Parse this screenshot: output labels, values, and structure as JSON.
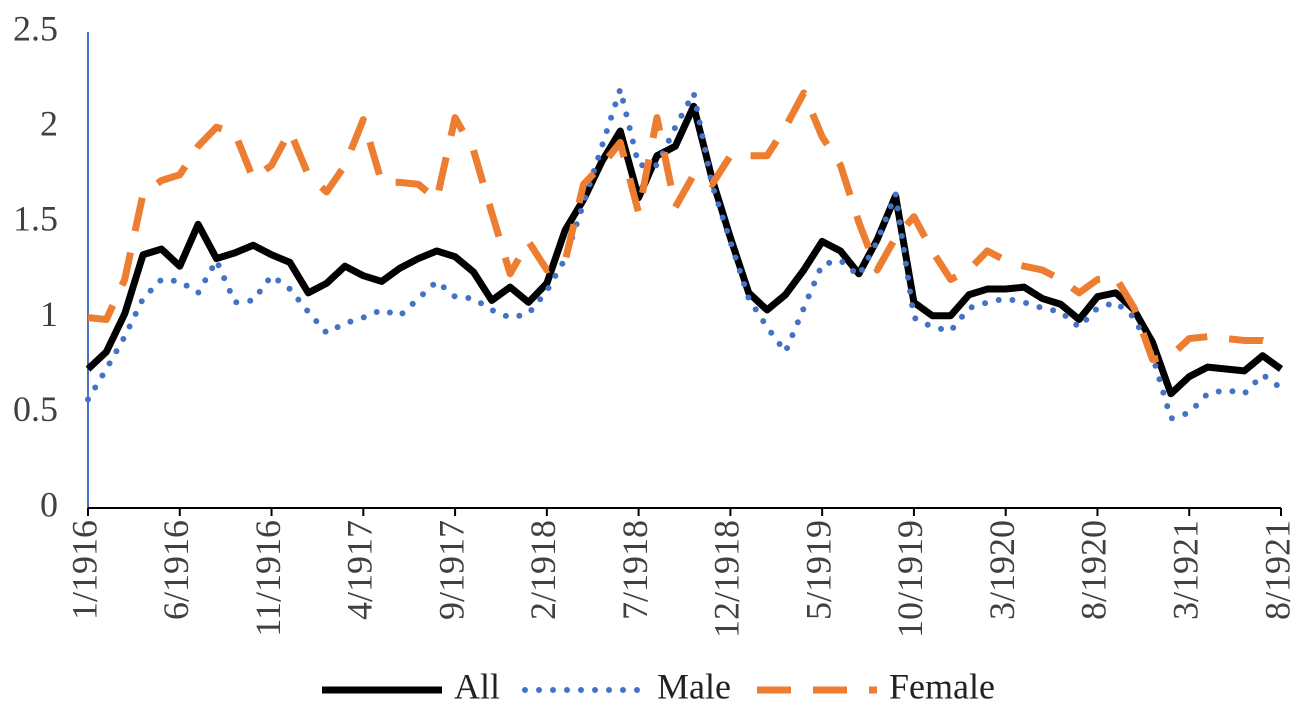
{
  "chart_data": {
    "type": "line",
    "categories": [
      "1/1916",
      null,
      null,
      null,
      null,
      "6/1916",
      null,
      null,
      null,
      null,
      "11/1916",
      null,
      null,
      null,
      null,
      "4/1917",
      null,
      null,
      null,
      null,
      "9/1917",
      null,
      null,
      null,
      null,
      "2/1918",
      null,
      null,
      null,
      null,
      "7/1918",
      null,
      null,
      null,
      null,
      "12/1918",
      null,
      null,
      null,
      null,
      "5/1919",
      null,
      null,
      null,
      null,
      "10/1919",
      null,
      null,
      null,
      null,
      "3/1920",
      null,
      null,
      null,
      null,
      "8/1920",
      null,
      null,
      null,
      null,
      "3/1921",
      null,
      null,
      null,
      null,
      "8/1921"
    ],
    "series": [
      {
        "name": "All",
        "color": "#000000",
        "values": [
          0.73,
          0.82,
          1.02,
          1.33,
          1.36,
          1.27,
          1.49,
          1.31,
          1.34,
          1.38,
          1.33,
          1.29,
          1.13,
          1.18,
          1.27,
          1.22,
          1.19,
          1.26,
          1.31,
          1.35,
          1.32,
          1.24,
          1.09,
          1.16,
          1.08,
          1.18,
          1.46,
          1.62,
          1.82,
          1.98,
          1.63,
          1.85,
          1.9,
          2.11,
          1.73,
          1.42,
          1.13,
          1.04,
          1.12,
          1.25,
          1.4,
          1.35,
          1.23,
          1.41,
          1.64,
          1.08,
          1.01,
          1.01,
          1.12,
          1.15,
          1.15,
          1.16,
          1.1,
          1.07,
          0.99,
          1.11,
          1.13,
          1.04,
          0.87,
          0.6,
          0.69,
          0.74,
          0.73,
          0.72,
          0.8,
          0.73
        ]
      },
      {
        "name": "Male",
        "color": "#4472c4",
        "values": [
          0.57,
          0.73,
          0.9,
          1.1,
          1.2,
          1.19,
          1.13,
          1.3,
          1.08,
          1.09,
          1.22,
          1.15,
          1.03,
          0.92,
          0.97,
          1.0,
          1.04,
          1.01,
          1.1,
          1.19,
          1.11,
          1.1,
          1.04,
          1.0,
          1.02,
          1.14,
          1.31,
          1.6,
          1.9,
          2.2,
          1.8,
          1.8,
          2.0,
          2.18,
          1.7,
          1.4,
          1.1,
          0.95,
          0.82,
          1.05,
          1.28,
          1.3,
          1.22,
          1.4,
          1.65,
          1.0,
          0.95,
          0.93,
          1.05,
          1.08,
          1.1,
          1.08,
          1.05,
          1.03,
          0.95,
          1.05,
          1.08,
          1.0,
          0.8,
          0.47,
          0.5,
          0.6,
          0.62,
          0.6,
          0.7,
          0.63
        ]
      },
      {
        "name": "Female",
        "color": "#ed7d31",
        "values": [
          1.0,
          0.99,
          1.2,
          1.65,
          1.72,
          1.75,
          1.9,
          2.0,
          1.97,
          1.73,
          1.8,
          1.98,
          1.75,
          1.66,
          1.8,
          2.04,
          1.71,
          1.71,
          1.7,
          1.62,
          2.05,
          1.88,
          1.55,
          1.23,
          1.4,
          1.25,
          1.3,
          1.7,
          1.8,
          1.92,
          1.55,
          2.05,
          1.58,
          1.75,
          1.7,
          1.85,
          1.85,
          1.85,
          2.0,
          2.18,
          1.95,
          1.8,
          1.5,
          1.25,
          1.42,
          1.53,
          1.35,
          1.2,
          1.25,
          1.35,
          1.3,
          1.27,
          1.25,
          1.2,
          1.13,
          1.2,
          1.21,
          1.05,
          0.78,
          0.8,
          0.89,
          0.9,
          0.89,
          0.88,
          0.88,
          0.85
        ]
      }
    ],
    "ylim": [
      0,
      2.5
    ],
    "yticks": [
      0,
      0.5,
      1,
      1.5,
      2,
      2.5
    ],
    "legend": "bottom"
  }
}
